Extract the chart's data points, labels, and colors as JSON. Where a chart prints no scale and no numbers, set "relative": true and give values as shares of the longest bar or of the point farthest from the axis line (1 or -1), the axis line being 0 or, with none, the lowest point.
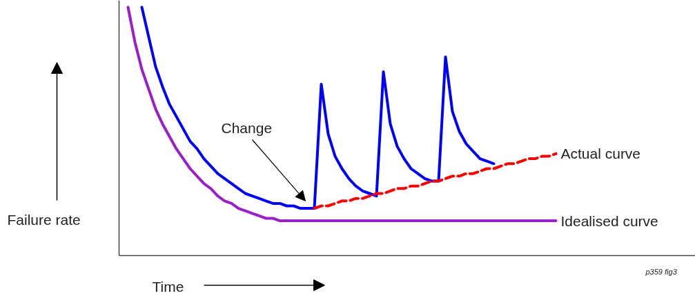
{
  "chart_data": {
    "type": "line",
    "relative": true,
    "xlabel": "Time",
    "ylabel": "Failure rate",
    "annotations": [
      "Change",
      "p359 fig3"
    ],
    "categories": [
      null,
      null,
      null,
      null,
      null,
      null,
      null,
      null,
      null,
      null,
      null,
      null,
      null,
      null,
      null,
      null,
      null,
      null,
      null,
      null,
      null,
      null,
      null,
      null,
      null,
      null,
      null,
      null,
      null,
      null,
      null,
      null,
      null,
      null,
      null,
      null,
      null,
      null,
      null,
      null,
      null,
      null,
      null,
      null,
      null,
      null,
      null,
      null,
      null,
      null,
      null,
      null,
      null,
      null,
      null,
      null,
      null,
      null,
      null,
      null,
      null,
      null,
      null
    ],
    "series": [
      {
        "color": "#0000ff",
        "values": [
          null,
          null,
          1.0,
          0.88,
          0.76,
          0.68,
          0.61,
          0.56,
          0.51,
          0.46,
          0.43,
          0.39,
          0.36,
          0.33,
          0.31,
          0.29,
          0.27,
          0.25,
          0.24,
          0.23,
          0.22,
          0.21,
          0.21,
          0.2,
          0.2,
          0.19,
          0.19,
          0.19,
          0.69,
          0.49,
          0.4,
          0.35,
          0.31,
          0.28,
          0.26,
          0.25,
          0.24,
          0.74,
          0.53,
          0.44,
          0.39,
          0.35,
          0.33,
          0.31,
          0.3,
          0.3,
          0.8,
          0.58,
          0.5,
          0.45,
          0.42,
          0.39,
          0.38,
          0.37,
          null,
          null,
          null,
          null,
          null,
          null,
          null,
          null,
          null
        ]
      },
      {
        "name": "Actual curve",
        "color": "#ff0000",
        "line_style": "dashed",
        "values": [
          null,
          null,
          null,
          null,
          null,
          null,
          null,
          null,
          null,
          null,
          null,
          null,
          null,
          null,
          null,
          null,
          null,
          null,
          null,
          null,
          null,
          null,
          null,
          null,
          null,
          null,
          null,
          0.19,
          0.2,
          0.2,
          0.21,
          0.22,
          0.22,
          0.23,
          0.23,
          0.24,
          0.25,
          0.25,
          0.26,
          0.27,
          0.27,
          0.28,
          0.28,
          0.29,
          0.3,
          0.3,
          0.31,
          0.32,
          0.32,
          0.33,
          0.33,
          0.34,
          0.35,
          0.35,
          0.36,
          0.37,
          0.37,
          0.38,
          0.39,
          0.39,
          0.4,
          0.4,
          0.41
        ]
      },
      {
        "name": "Idealised curve",
        "color": "#9b1fc8",
        "values": [
          1.0,
          0.86,
          0.75,
          0.67,
          0.59,
          0.53,
          0.48,
          0.43,
          0.39,
          0.35,
          0.32,
          0.29,
          0.27,
          0.24,
          0.22,
          0.21,
          0.19,
          0.18,
          0.17,
          0.16,
          0.15,
          0.15,
          0.14,
          0.14,
          0.14,
          0.14,
          0.14,
          0.14,
          0.14,
          0.14,
          0.14,
          0.14,
          0.14,
          0.14,
          0.14,
          0.14,
          0.14,
          0.14,
          0.14,
          0.14,
          0.14,
          0.14,
          0.14,
          0.14,
          0.14,
          0.14,
          0.14,
          0.14,
          0.14,
          0.14,
          0.14,
          0.14,
          0.14,
          0.14,
          0.14,
          0.14,
          0.14,
          0.14,
          0.14,
          0.14,
          0.14,
          0.14,
          0.14
        ]
      }
    ],
    "grid": false,
    "marker": "none",
    "line_style": "solid"
  }
}
